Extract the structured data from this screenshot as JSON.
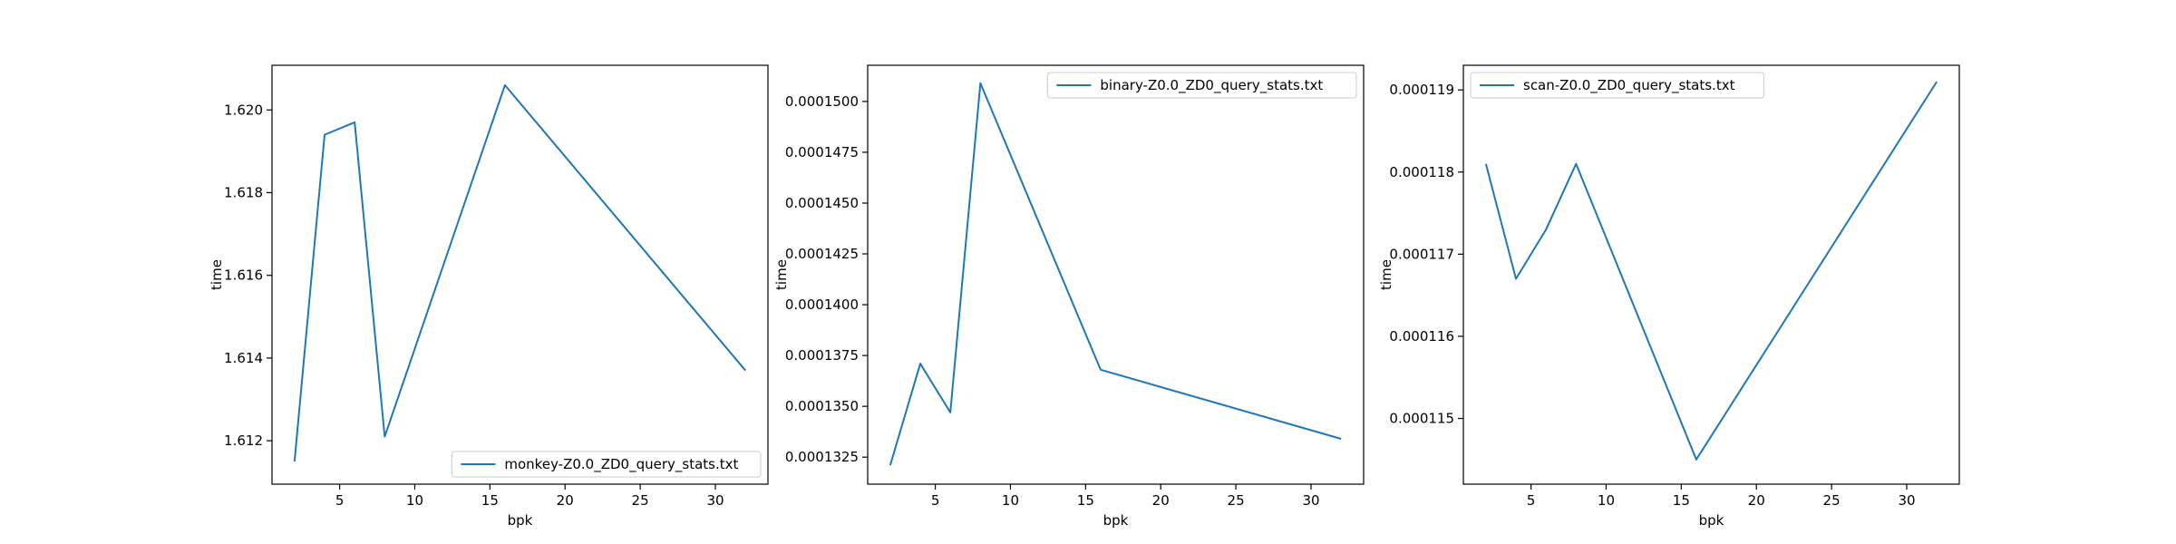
{
  "figure": {
    "background": "#ffffff",
    "series_color": "#1f77b4"
  },
  "chart_data": [
    {
      "type": "line",
      "xlabel": "bpk",
      "ylabel": "time",
      "xlim": [
        0.5,
        33.5
      ],
      "ylim": [
        1.61095,
        1.62108
      ],
      "xticks": [
        5,
        10,
        15,
        20,
        25,
        30
      ],
      "xtick_labels": [
        "5",
        "10",
        "15",
        "20",
        "25",
        "30"
      ],
      "yticks": [
        1.612,
        1.614,
        1.616,
        1.618,
        1.62
      ],
      "ytick_labels": [
        "1.612",
        "1.614",
        "1.616",
        "1.618",
        "1.620"
      ],
      "legend_position": "lower-right",
      "series": [
        {
          "name": "monkey-Z0.0_ZD0_query_stats.txt",
          "x": [
            2,
            4,
            6,
            8,
            16,
            32
          ],
          "y": [
            1.6115,
            1.6194,
            1.6197,
            1.6121,
            1.6206,
            1.6137
          ]
        }
      ]
    },
    {
      "type": "line",
      "xlabel": "bpk",
      "ylabel": "time",
      "xlim": [
        0.5,
        33.5
      ],
      "ylim": [
        0.00013117,
        0.00015178
      ],
      "xticks": [
        5,
        10,
        15,
        20,
        25,
        30
      ],
      "xtick_labels": [
        "5",
        "10",
        "15",
        "20",
        "25",
        "30"
      ],
      "yticks": [
        0.0001325,
        0.000135,
        0.0001375,
        0.00014,
        0.0001425,
        0.000145,
        0.0001475,
        0.00015
      ],
      "ytick_labels": [
        "0.0001325",
        "0.0001350",
        "0.0001375",
        "0.0001400",
        "0.0001425",
        "0.0001450",
        "0.0001475",
        "0.0001500"
      ],
      "legend_position": "upper-right",
      "series": [
        {
          "name": "binary-Z0.0_ZD0_query_stats.txt",
          "x": [
            2,
            4,
            6,
            8,
            16,
            32
          ],
          "y": [
            0.0001321,
            0.0001371,
            0.0001347,
            0.0001509,
            0.0001368,
            0.0001334
          ]
        }
      ]
    },
    {
      "type": "line",
      "xlabel": "bpk",
      "ylabel": "time",
      "xlim": [
        0.5,
        33.5
      ],
      "ylim": [
        0.0001142,
        0.0001193
      ],
      "xticks": [
        5,
        10,
        15,
        20,
        25,
        30
      ],
      "xtick_labels": [
        "5",
        "10",
        "15",
        "20",
        "25",
        "30"
      ],
      "yticks": [
        0.000115,
        0.000116,
        0.000117,
        0.000118,
        0.000119
      ],
      "ytick_labels": [
        "0.000115",
        "0.000116",
        "0.000117",
        "0.000118",
        "0.000119"
      ],
      "legend_position": "upper-left",
      "series": [
        {
          "name": "scan-Z0.0_ZD0_query_stats.txt",
          "x": [
            2,
            4,
            6,
            8,
            16,
            32
          ],
          "y": [
            0.0001181,
            0.0001167,
            0.0001173,
            0.0001181,
            0.0001145,
            0.0001191
          ]
        }
      ]
    }
  ]
}
